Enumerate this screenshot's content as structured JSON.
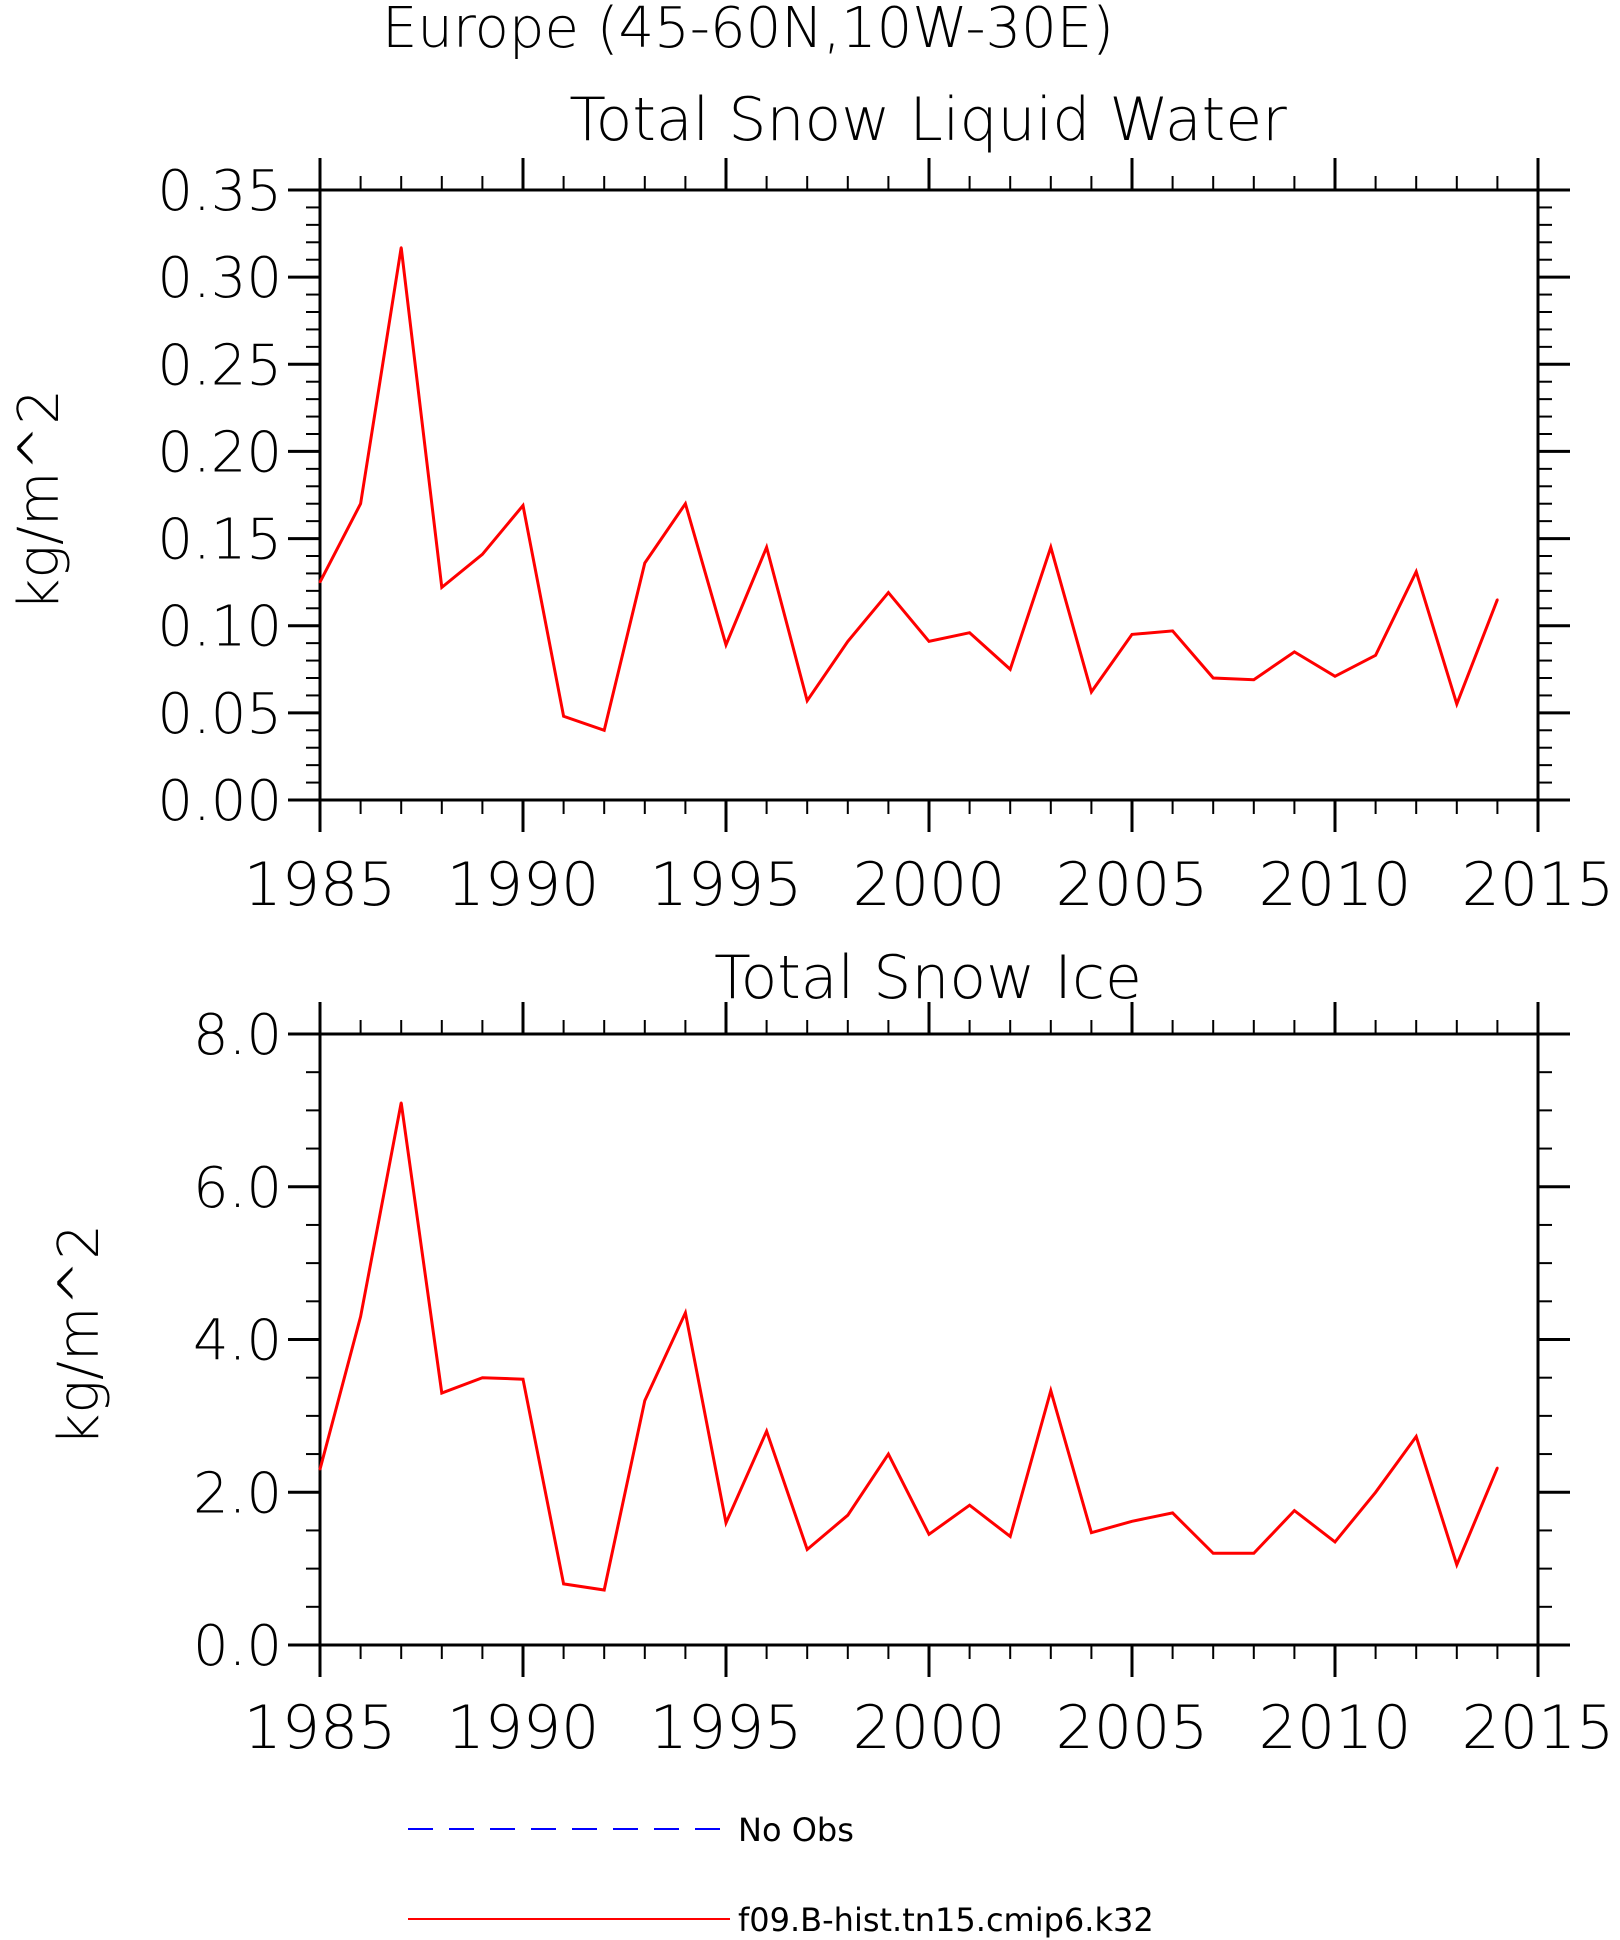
{
  "figure_title": "Europe (45-60N,10W-30E)",
  "colors": {
    "model": "#ff0000",
    "obs": "#0000ff",
    "axes": "#000000"
  },
  "legend": [
    {
      "label": "No Obs",
      "style": "dashed",
      "color": "#0000ff"
    },
    {
      "label": "f09.B-hist.tn15.cmip6.k32",
      "style": "solid",
      "color": "#ff0000"
    }
  ],
  "chart_data": [
    {
      "type": "line",
      "title": "Total Snow Liquid Water",
      "ylabel": "kg/m^2",
      "xlabel": "",
      "xlim": [
        1985,
        2015
      ],
      "ylim": [
        0,
        0.35
      ],
      "x_ticks": [
        1985,
        1990,
        1995,
        2000,
        2005,
        2010,
        2015
      ],
      "y_ticks": [
        "0.00",
        "0.05",
        "0.10",
        "0.15",
        "0.20",
        "0.25",
        "0.30",
        "0.35"
      ],
      "y_tick_values": [
        0,
        0.05,
        0.1,
        0.15,
        0.2,
        0.25,
        0.3,
        0.35
      ],
      "y_minor_step": 0.01,
      "x_minor_step": 1,
      "series": [
        {
          "name": "f09.B-hist.tn15.cmip6.k32",
          "color": "#ff0000",
          "x": [
            1985,
            1986,
            1987,
            1988,
            1989,
            1990,
            1991,
            1992,
            1993,
            1994,
            1995,
            1996,
            1997,
            1998,
            1999,
            2000,
            2001,
            2002,
            2003,
            2004,
            2005,
            2006,
            2007,
            2008,
            2009,
            2010,
            2011,
            2012,
            2013,
            2014
          ],
          "values": [
            0.125,
            0.17,
            0.317,
            0.122,
            0.141,
            0.169,
            0.048,
            0.04,
            0.136,
            0.17,
            0.089,
            0.145,
            0.057,
            0.091,
            0.119,
            0.091,
            0.096,
            0.075,
            0.145,
            0.062,
            0.095,
            0.097,
            0.07,
            0.069,
            0.085,
            0.071,
            0.083,
            0.131,
            0.055,
            0.115
          ]
        }
      ]
    },
    {
      "type": "line",
      "title": "Total Snow Ice",
      "ylabel": "kg/m^2",
      "xlabel": "",
      "xlim": [
        1985,
        2015
      ],
      "ylim": [
        0,
        8
      ],
      "x_ticks": [
        1985,
        1990,
        1995,
        2000,
        2005,
        2010,
        2015
      ],
      "y_ticks": [
        "0.0",
        "2.0",
        "4.0",
        "6.0",
        "8.0"
      ],
      "y_tick_values": [
        0,
        2,
        4,
        6,
        8
      ],
      "y_minor_step": 0.5,
      "x_minor_step": 1,
      "series": [
        {
          "name": "f09.B-hist.tn15.cmip6.k32",
          "color": "#ff0000",
          "x": [
            1985,
            1986,
            1987,
            1988,
            1989,
            1990,
            1991,
            1992,
            1993,
            1994,
            1995,
            1996,
            1997,
            1998,
            1999,
            2000,
            2001,
            2002,
            2003,
            2004,
            2005,
            2006,
            2007,
            2008,
            2009,
            2010,
            2011,
            2012,
            2013,
            2014
          ],
          "values": [
            2.3,
            4.3,
            7.1,
            3.3,
            3.5,
            3.48,
            0.8,
            0.72,
            3.2,
            4.35,
            1.6,
            2.8,
            1.25,
            1.7,
            2.5,
            1.45,
            1.83,
            1.42,
            3.33,
            1.47,
            1.62,
            1.73,
            1.2,
            1.2,
            1.76,
            1.35,
            2.0,
            2.73,
            1.05,
            2.32
          ]
        }
      ]
    }
  ]
}
